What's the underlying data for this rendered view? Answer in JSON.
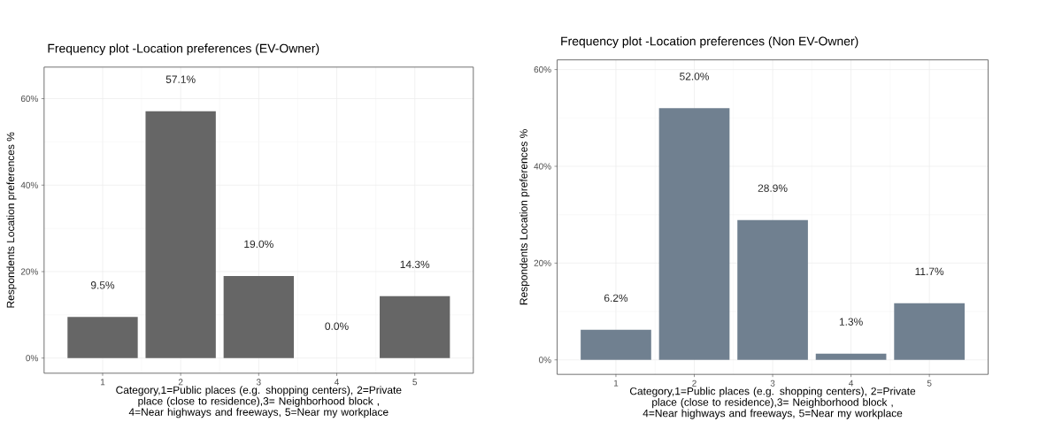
{
  "chart_data": [
    {
      "type": "bar",
      "title": "Frequency plot -Location preferences (EV-Owner)",
      "xlabel": "Category,1=Public places (e.g. shopping centers), 2=Private place (close to residence),3= Neighborhood block , 4=Near highways and freeways, 5=Near my workplace",
      "ylabel": "Respondents Location preferences %",
      "categories": [
        "1",
        "2",
        "3",
        "4",
        "5"
      ],
      "values": [
        9.5,
        57.1,
        19.0,
        0.0,
        14.3
      ],
      "value_labels": [
        "9.5%",
        "57.1%",
        "19.0%",
        "0.0%",
        "14.3%"
      ],
      "color": "#666666",
      "ylim": [
        -3.5,
        67.3
      ],
      "yticks": [
        {
          "value": 0,
          "label": "0%"
        },
        {
          "value": 20,
          "label": "20%"
        },
        {
          "value": 40,
          "label": "40%"
        },
        {
          "value": 60,
          "label": "60%"
        }
      ],
      "grid": true
    },
    {
      "type": "bar",
      "title": "Frequency plot -Location preferences (Non EV-Owner)",
      "xlabel": "Category,1=Public places (e.g. shopping centers), 2=Private place (close to residence),3= Neighborhood block , 4=Near highways and freeways, 5=Near my workplace",
      "ylabel": "Respondents Location preferences %",
      "categories": [
        "1",
        "2",
        "3",
        "4",
        "5"
      ],
      "values": [
        6.2,
        52.0,
        28.9,
        1.3,
        11.7
      ],
      "value_labels": [
        "6.2%",
        "52.0%",
        "28.9%",
        "1.3%",
        "11.7%"
      ],
      "color": "#708090",
      "ylim": [
        -3.0,
        62.0
      ],
      "yticks": [
        {
          "value": 0,
          "label": "0%"
        },
        {
          "value": 20,
          "label": "20%"
        },
        {
          "value": 40,
          "label": "40%"
        },
        {
          "value": 60,
          "label": "60%"
        }
      ],
      "grid": true
    }
  ]
}
